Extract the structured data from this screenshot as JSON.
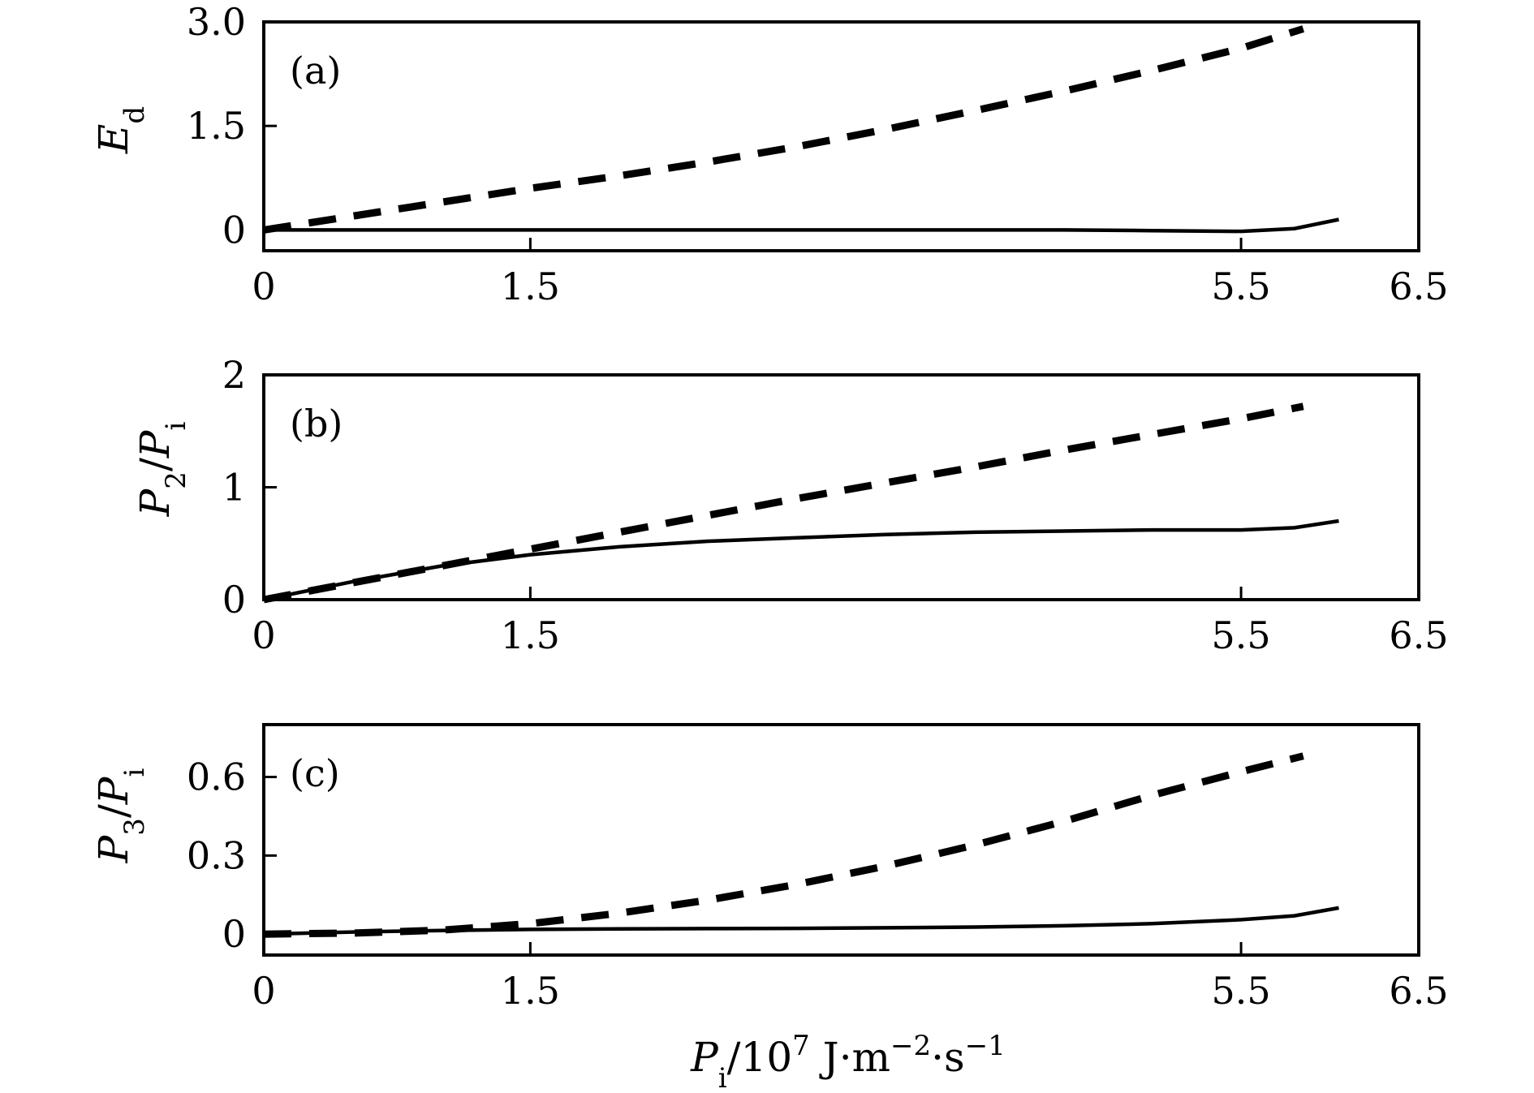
{
  "chart_data": [
    {
      "type": "line",
      "panel_label": "(a)",
      "ylabel": "E_d",
      "xlim": [
        0,
        6.5
      ],
      "ylim": [
        -0.3,
        3.0
      ],
      "xticks": [
        0,
        1.5,
        5.5,
        6.5
      ],
      "xtick_labels": [
        "0",
        "1.5",
        "5.5",
        "6.5"
      ],
      "yticks": [
        0,
        1.5,
        3.0
      ],
      "ytick_labels": [
        "0",
        "1.5",
        "3.0"
      ],
      "series": [
        {
          "style": "solid",
          "x": [
            0,
            0.5,
            1,
            1.5,
            2,
            2.5,
            3,
            3.5,
            4,
            4.5,
            5,
            5.5,
            5.8,
            6.05
          ],
          "y": [
            0.0,
            0.0,
            0.0,
            0.0,
            0.0,
            0.0,
            0.0,
            0.0,
            0.0,
            0.0,
            -0.01,
            -0.02,
            0.02,
            0.15
          ]
        },
        {
          "style": "dashed",
          "x": [
            0,
            0.5,
            1,
            1.5,
            2,
            2.5,
            3,
            3.5,
            4,
            4.5,
            5,
            5.5,
            5.85
          ],
          "y": [
            0.0,
            0.2,
            0.4,
            0.6,
            0.78,
            0.98,
            1.2,
            1.45,
            1.72,
            2.0,
            2.3,
            2.62,
            2.9
          ]
        }
      ]
    },
    {
      "type": "line",
      "panel_label": "(b)",
      "ylabel": "P_2/P_i",
      "xlim": [
        0,
        6.5
      ],
      "ylim": [
        0,
        2
      ],
      "xticks": [
        0,
        1.5,
        5.5,
        6.5
      ],
      "xtick_labels": [
        "0",
        "1.5",
        "5.5",
        "6.5"
      ],
      "yticks": [
        0,
        1,
        2
      ],
      "ytick_labels": [
        "0",
        "1",
        "2"
      ],
      "series": [
        {
          "style": "solid",
          "x": [
            0,
            0.5,
            1,
            1.5,
            2,
            2.5,
            3,
            3.5,
            4,
            4.5,
            5,
            5.5,
            5.8,
            6.05
          ],
          "y": [
            0.0,
            0.16,
            0.3,
            0.4,
            0.47,
            0.52,
            0.55,
            0.58,
            0.6,
            0.61,
            0.62,
            0.62,
            0.64,
            0.7
          ]
        },
        {
          "style": "dashed",
          "x": [
            0,
            0.5,
            1,
            1.5,
            2,
            2.5,
            3,
            3.5,
            4,
            4.5,
            5,
            5.5,
            5.85
          ],
          "y": [
            0.0,
            0.15,
            0.3,
            0.45,
            0.6,
            0.75,
            0.9,
            1.04,
            1.18,
            1.33,
            1.47,
            1.61,
            1.72
          ]
        }
      ]
    },
    {
      "type": "line",
      "panel_label": "(c)",
      "ylabel": "P_3/P_i",
      "xlabel": "P_i/10^7 J·m^-2·s^-1",
      "xlim": [
        0,
        6.5
      ],
      "ylim": [
        -0.08,
        0.8
      ],
      "xticks": [
        0,
        1.5,
        5.5,
        6.5
      ],
      "xtick_labels": [
        "0",
        "1.5",
        "5.5",
        "6.5"
      ],
      "yticks": [
        0,
        0.3,
        0.6
      ],
      "ytick_labels": [
        "0",
        "0.3",
        "0.6"
      ],
      "series": [
        {
          "style": "solid",
          "x": [
            0,
            0.5,
            1,
            1.5,
            2,
            2.5,
            3,
            3.5,
            4,
            4.5,
            5,
            5.5,
            5.8,
            6.05
          ],
          "y": [
            0.0,
            0.008,
            0.014,
            0.018,
            0.02,
            0.021,
            0.022,
            0.024,
            0.027,
            0.032,
            0.04,
            0.055,
            0.07,
            0.1
          ]
        },
        {
          "style": "dashed",
          "x": [
            0,
            0.5,
            1,
            1.5,
            2,
            2.5,
            3,
            3.5,
            4,
            4.5,
            5,
            5.5,
            5.85
          ],
          "y": [
            0.0,
            0.004,
            0.015,
            0.04,
            0.08,
            0.13,
            0.19,
            0.26,
            0.34,
            0.43,
            0.53,
            0.62,
            0.68
          ]
        }
      ]
    }
  ]
}
